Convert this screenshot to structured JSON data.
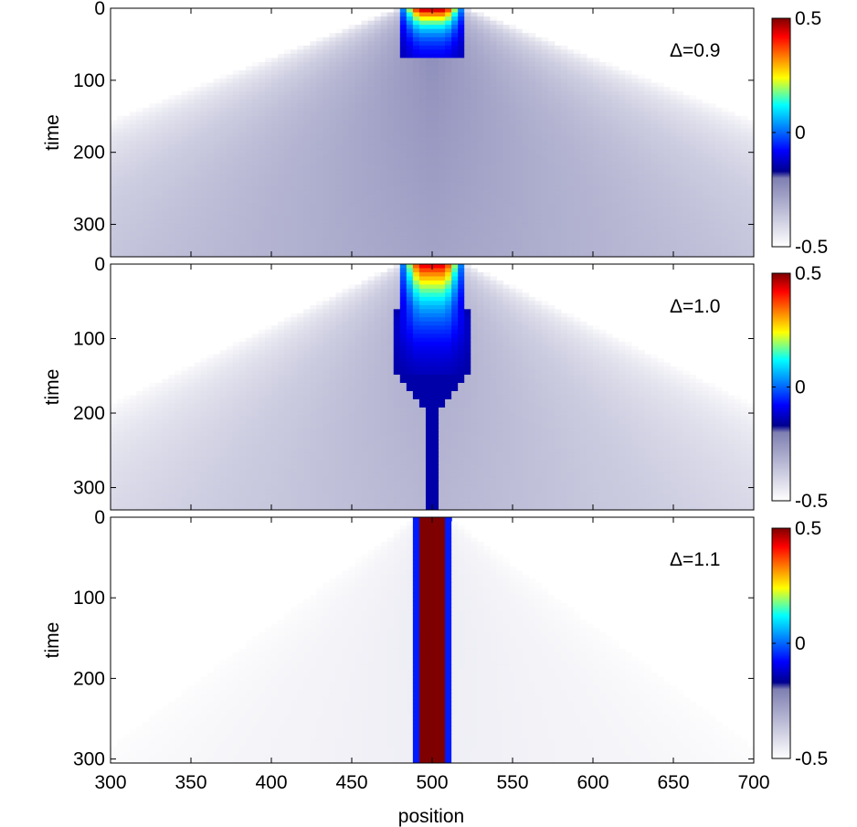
{
  "colorbar_ticks": [
    "0.5",
    "0",
    "-0.5"
  ],
  "colorbar_colors": [
    "#ffffff",
    "#7f7fb2",
    "#00008f",
    "#0000ff",
    "#0080ff",
    "#00ffff",
    "#ffff00",
    "#ff8000",
    "#ff0000",
    "#7f0000"
  ],
  "colormap_note": "jet colormap with lower third replaced by white-to-navy ramp",
  "chart_data": [
    {
      "type": "heatmap",
      "annotation": "Δ=0.9",
      "xlabel": "",
      "ylabel": "time",
      "xlim": [
        300,
        700
      ],
      "ylim": [
        0,
        345
      ],
      "y_reversed": true,
      "x_ticks": [],
      "y_ticks": [
        "0",
        "100",
        "200",
        "300"
      ],
      "y_tick_values": [
        0,
        100,
        200,
        300
      ],
      "clim": [
        -0.5,
        0.5
      ],
      "center_position": 500,
      "core_half_width": 22,
      "core_end_time": 70,
      "light_cone_speed": 1.15
    },
    {
      "type": "heatmap",
      "annotation": "Δ=1.0",
      "xlabel": "",
      "ylabel": "time",
      "xlim": [
        300,
        700
      ],
      "ylim": [
        0,
        330
      ],
      "y_reversed": true,
      "x_ticks": [],
      "y_ticks": [
        "0",
        "100",
        "200",
        "300"
      ],
      "y_tick_values": [
        0,
        100,
        200,
        300
      ],
      "clim": [
        -0.5,
        0.5
      ],
      "center_position": 500,
      "core_half_width": 22,
      "core_end_time": 330,
      "light_cone_speed": 0.95
    },
    {
      "type": "heatmap",
      "annotation": "Δ=1.1",
      "xlabel": "position",
      "ylabel": "time",
      "xlim": [
        300,
        700
      ],
      "ylim": [
        0,
        305
      ],
      "y_reversed": true,
      "x_ticks": [
        "300",
        "350",
        "400",
        "450",
        "500",
        "550",
        "600",
        "650",
        "700"
      ],
      "x_tick_values": [
        300,
        350,
        400,
        450,
        500,
        550,
        600,
        650,
        700
      ],
      "y_ticks": [
        "0",
        "100",
        "200",
        "300"
      ],
      "y_tick_values": [
        0,
        100,
        200,
        300
      ],
      "clim": [
        -0.5,
        0.5
      ],
      "center_position": 500,
      "core_half_width": 11,
      "core_end_time": 305,
      "light_cone_speed": 0.7
    }
  ]
}
